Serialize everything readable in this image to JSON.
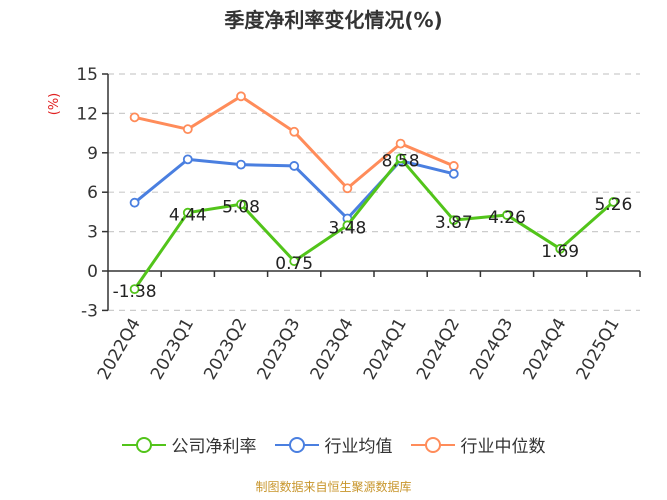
{
  "chart_data": {
    "type": "line",
    "title": "季度净利率变化情况(%)",
    "xlabel": "",
    "ylabel": "(%)",
    "ylim": [
      -3,
      15
    ],
    "yticks": [
      -3,
      0,
      3,
      6,
      9,
      12,
      15
    ],
    "grid": true,
    "legend_position": "bottom",
    "categories": [
      "2022Q4",
      "2023Q1",
      "2023Q2",
      "2023Q3",
      "2023Q4",
      "2024Q1",
      "2024Q2",
      "2024Q3",
      "2024Q4",
      "2025Q1"
    ],
    "series": [
      {
        "name": "公司净利率",
        "color": "#52c41a",
        "values": [
          -1.38,
          4.44,
          5.08,
          0.75,
          3.48,
          8.58,
          3.87,
          4.26,
          1.69,
          5.26
        ],
        "labels": [
          "-1.38",
          "4.44",
          "5.08",
          "0.75",
          "3.48",
          "8.58",
          "3.87",
          "4.26",
          "1.69",
          "5.26"
        ]
      },
      {
        "name": "行业均值",
        "color": "#4a7fe0",
        "values": [
          5.2,
          8.5,
          8.1,
          8.0,
          4.0,
          8.4,
          7.4,
          null,
          null,
          null
        ]
      },
      {
        "name": "行业中位数",
        "color": "#ff8c5a",
        "values": [
          11.7,
          10.8,
          13.3,
          10.6,
          6.3,
          9.7,
          8.0,
          null,
          null,
          null
        ]
      }
    ]
  },
  "header": {
    "title": "季度净利率变化情况(%)"
  },
  "axis": {
    "y_unit": "(%)"
  },
  "legend": {
    "items": [
      "公司净利率",
      "行业均值",
      "行业中位数"
    ]
  },
  "footer": {
    "source": "制图数据来自恒生聚源数据库",
    "source_color": "#c8962d"
  }
}
